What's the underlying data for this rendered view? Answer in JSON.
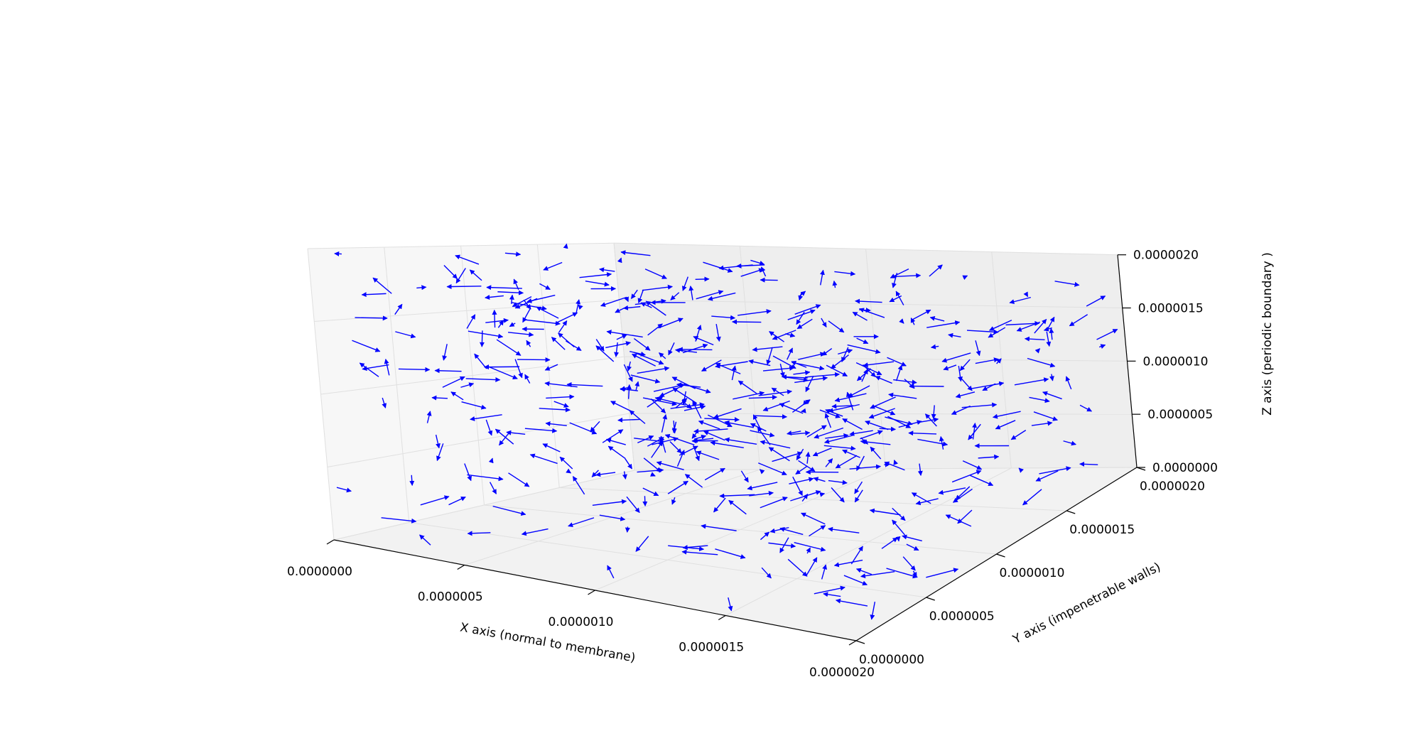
{
  "chart_data": {
    "type": "quiver3d",
    "title": "",
    "arrow_color": "#0000ff",
    "grid": true,
    "x_axis": {
      "label": "X axis (normal to membrane)",
      "range": [
        0,
        2e-06
      ],
      "ticks": [
        0,
        5e-07,
        1e-06,
        1.5e-06,
        2e-06
      ],
      "tick_labels": [
        "0.0000000",
        "0.0000005",
        "0.0000010",
        "0.0000015",
        "0.0000020"
      ]
    },
    "y_axis": {
      "label": "Y axis (impenetrable walls)",
      "range": [
        0,
        2e-06
      ],
      "ticks": [
        0,
        5e-07,
        1e-06,
        1.5e-06,
        2e-06
      ],
      "tick_labels": [
        "0.0000000",
        "0.0000005",
        "0.0000010",
        "0.0000015",
        "0.0000020"
      ]
    },
    "z_axis": {
      "label": "Z axis (periodic boundary )",
      "range": [
        0,
        2e-06
      ],
      "ticks": [
        0,
        5e-07,
        1e-06,
        1.5e-06,
        2e-06
      ],
      "tick_labels": [
        "0.0000000",
        "0.0000005",
        "0.0000010",
        "0.0000015",
        "0.0000020"
      ]
    },
    "arrow_count": 500,
    "arrow_length": 1.2e-07
  }
}
